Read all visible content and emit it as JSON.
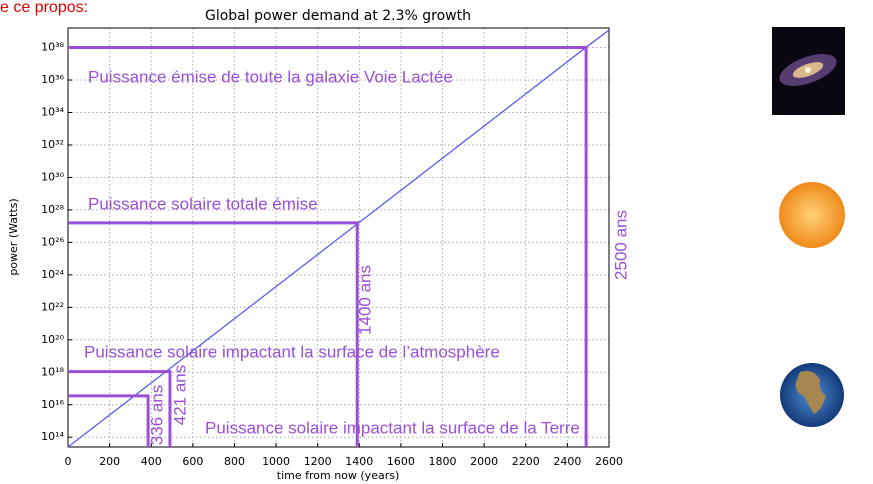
{
  "chart_data": {
    "type": "line",
    "title": "Global power demand at 2.3% growth",
    "note": "e ce propos:",
    "x_label": "time from now (years)",
    "y_label": "power (Watts)",
    "log_y": true,
    "grid": true,
    "x": [
      0,
      336,
      421,
      1400,
      2500,
      2600
    ],
    "series": [
      {
        "color": "#5b5bf0",
        "values": [
          25000000000000.0,
          5.2e+16,
          3.6e+17,
          1.7e+27,
          1.3e+38,
          1.2e+39
        ]
      }
    ],
    "xlim": [
      0,
      2600
    ],
    "ylim": [
      25000000000000.0,
      1.6e+39
    ],
    "xticks": [
      0,
      200,
      400,
      600,
      800,
      1000,
      1200,
      1400,
      1600,
      1800,
      2000,
      2200,
      2400,
      2600
    ],
    "yticks": [
      {
        "value": 100000000000000.0,
        "label": "10¹⁴"
      },
      {
        "value": 1e+16,
        "label": "10¹⁶"
      },
      {
        "value": 1e+18,
        "label": "10¹⁸"
      },
      {
        "value": 1e+20,
        "label": "10²⁰"
      },
      {
        "value": 1e+22,
        "label": "10²²"
      },
      {
        "value": 1e+24,
        "label": "10²⁴"
      },
      {
        "value": 1e+26,
        "label": "10²⁶"
      },
      {
        "value": 1e+28,
        "label": "10²⁸"
      },
      {
        "value": 1e+30,
        "label": "10³⁰"
      },
      {
        "value": 1e+32,
        "label": "10³²"
      },
      {
        "value": 1e+34,
        "label": "10³⁴"
      },
      {
        "value": 1e+36,
        "label": "10³⁶"
      },
      {
        "value": 1e+38,
        "label": "10³⁸"
      }
    ],
    "annotation_color": "#9b4fd6",
    "annotations": [
      {
        "x": 385,
        "y": 3.5e+16,
        "label": "336 ans"
      },
      {
        "x": 490,
        "y": 1.1e+18,
        "label": "421 ans",
        "text": "Puissance solaire impactant la surface de l’atmosphère"
      },
      {
        "x": 1390,
        "y": 1.6e+27,
        "label": "1400 ans",
        "text": "Puissance solaire totale émise"
      },
      {
        "x": 2490,
        "y": 1e+38,
        "label": "2500 ans",
        "text": "Puissance émise de toute la galaxie Voie Lactée"
      }
    ],
    "bottom_text": "Puissance solaire impactant la surface de la Terre"
  }
}
